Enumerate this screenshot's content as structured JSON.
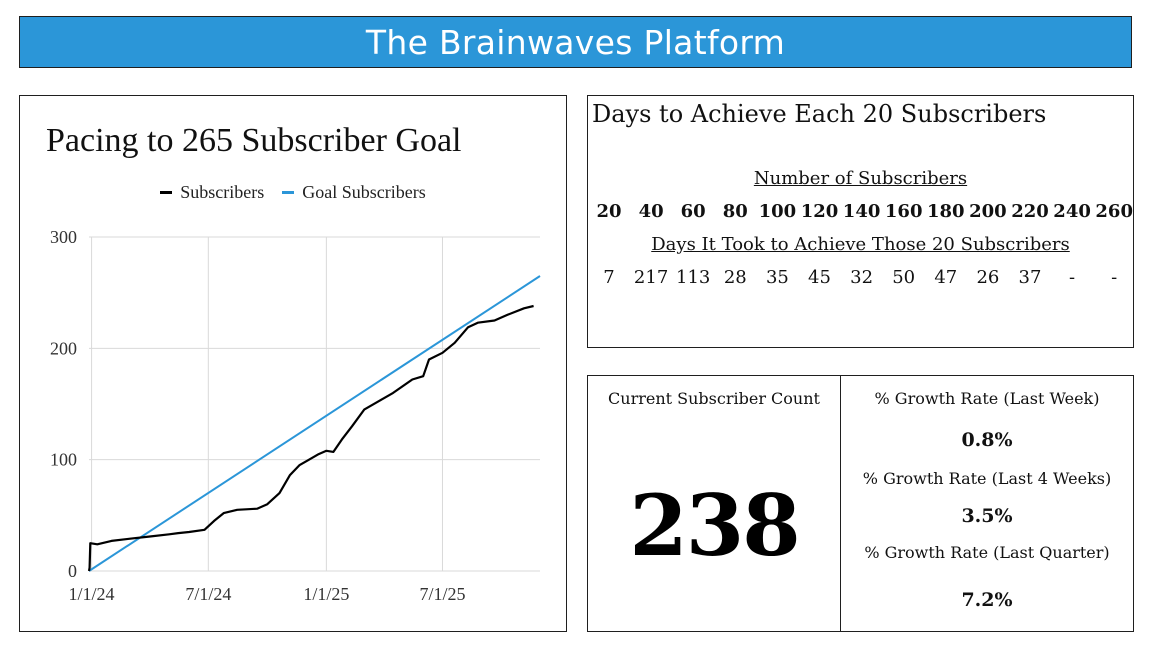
{
  "header": {
    "title": "The Brainwaves Platform"
  },
  "chart_data": {
    "type": "line",
    "title": "Pacing to 265 Subscriber Goal",
    "xlabel": "",
    "ylabel": "",
    "x_ticks": [
      "1/1/24",
      "7/1/24",
      "1/1/25",
      "7/1/25"
    ],
    "y_ticks": [
      0,
      100,
      200,
      300
    ],
    "ylim": [
      0,
      300
    ],
    "xlim": [
      "2023-12-28",
      "2025-11-30"
    ],
    "grid": true,
    "legend": "top",
    "series": [
      {
        "name": "Subscribers",
        "color": "#000000",
        "points": [
          [
            "2023-12-28",
            0
          ],
          [
            "2023-12-29",
            3
          ],
          [
            "2023-12-30",
            25
          ],
          [
            "2024-01-10",
            24
          ],
          [
            "2024-02-01",
            27
          ],
          [
            "2024-03-01",
            29
          ],
          [
            "2024-04-01",
            31
          ],
          [
            "2024-05-01",
            33
          ],
          [
            "2024-05-15",
            34
          ],
          [
            "2024-06-01",
            35
          ],
          [
            "2024-06-25",
            37
          ],
          [
            "2024-07-10",
            45
          ],
          [
            "2024-07-25",
            52
          ],
          [
            "2024-08-15",
            55
          ],
          [
            "2024-09-15",
            56
          ],
          [
            "2024-10-01",
            60
          ],
          [
            "2024-10-20",
            70
          ],
          [
            "2024-11-05",
            86
          ],
          [
            "2024-11-20",
            95
          ],
          [
            "2024-12-05",
            100
          ],
          [
            "2024-12-20",
            105
          ],
          [
            "2025-01-01",
            108
          ],
          [
            "2025-01-12",
            107
          ],
          [
            "2025-01-25",
            118
          ],
          [
            "2025-02-10",
            130
          ],
          [
            "2025-03-01",
            145
          ],
          [
            "2025-03-25",
            153
          ],
          [
            "2025-04-15",
            160
          ],
          [
            "2025-05-15",
            172
          ],
          [
            "2025-06-01",
            175
          ],
          [
            "2025-06-10",
            190
          ],
          [
            "2025-07-01",
            196
          ],
          [
            "2025-07-20",
            205
          ],
          [
            "2025-08-10",
            219
          ],
          [
            "2025-08-25",
            223
          ],
          [
            "2025-09-20",
            225
          ],
          [
            "2025-10-10",
            230
          ],
          [
            "2025-11-05",
            236
          ],
          [
            "2025-11-20",
            238
          ]
        ]
      },
      {
        "name": "Goal Subscribers",
        "color": "#2b96d8",
        "points": [
          [
            "2023-12-28",
            0
          ],
          [
            "2025-11-30",
            265
          ]
        ]
      }
    ]
  },
  "days_panel": {
    "title": "Days to Achieve Each 20 Subscribers",
    "subscribers_header": "Number of Subscribers",
    "subscriber_counts": [
      "20",
      "40",
      "60",
      "80",
      "100",
      "120",
      "140",
      "160",
      "180",
      "200",
      "220",
      "240",
      "260"
    ],
    "days_header": "Days It Took to Achieve Those 20 Subscribers",
    "days": [
      "7",
      "217",
      "113",
      "28",
      "35",
      "45",
      "32",
      "50",
      "47",
      "26",
      "37",
      "-",
      "-"
    ]
  },
  "stats": {
    "current_label": "Current Subscriber Count",
    "current_value": "238",
    "week_label": "% Growth Rate (Last Week)",
    "week_value": "0.8%",
    "four_week_label": "% Growth Rate (Last 4 Weeks)",
    "four_week_value": "3.5%",
    "quarter_label": "% Growth Rate (Last Quarter)",
    "quarter_value": "7.2%"
  }
}
